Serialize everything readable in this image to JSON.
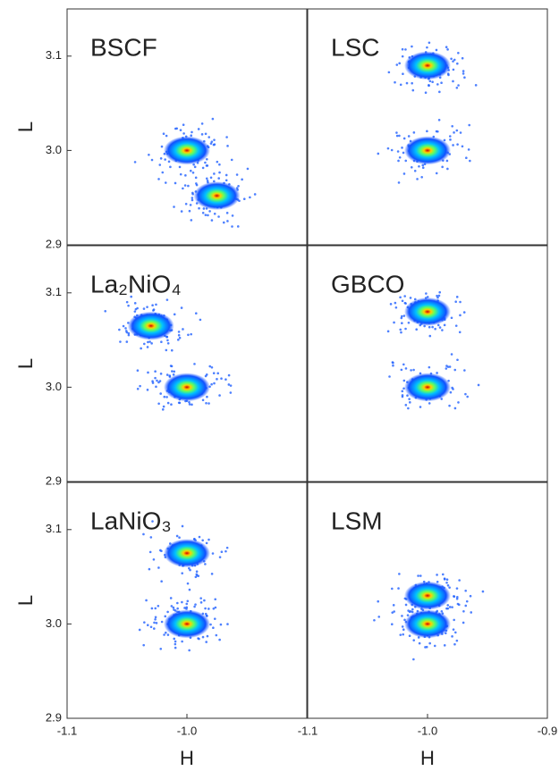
{
  "chart_data": [
    {
      "type": "scatter",
      "title": "BSCF",
      "x": [
        -1.0,
        -0.975
      ],
      "y": [
        3.0,
        2.952
      ],
      "xlim": [
        -1.1,
        -0.9
      ],
      "ylim": [
        2.9,
        3.15
      ],
      "yticks": [
        2.9,
        {
          "value": 3,
          "label": "3.0"
        },
        3.1
      ],
      "ylabel": "L"
    },
    {
      "type": "scatter",
      "title": "LSC",
      "x": [
        -1.0,
        -1.0
      ],
      "y": [
        3.0,
        3.09
      ],
      "xlim": [
        -1.1,
        -0.9
      ],
      "ylim": [
        2.9,
        3.15
      ]
    },
    {
      "type": "scatter",
      "title": "La₂NiO₄",
      "x": [
        -1.03,
        -1.0
      ],
      "y": [
        3.065,
        3.0
      ],
      "xlim": [
        -1.1,
        -0.9
      ],
      "ylim": [
        2.9,
        3.15
      ],
      "yticks": [
        2.9,
        {
          "value": 3,
          "label": "3.0"
        },
        3.1
      ],
      "ylabel": "L"
    },
    {
      "type": "scatter",
      "title": "GBCO",
      "x": [
        -1.0,
        -1.0
      ],
      "y": [
        3.08,
        3.0
      ],
      "xlim": [
        -1.1,
        -0.9
      ],
      "ylim": [
        2.9,
        3.15
      ]
    },
    {
      "type": "scatter",
      "title": "LaNiO₃",
      "x": [
        -1.0,
        -1.0
      ],
      "y": [
        3.075,
        3.0
      ],
      "xlim": [
        -1.1,
        -0.9
      ],
      "ylim": [
        2.9,
        3.15
      ],
      "yticks": [
        2.9,
        {
          "value": 3,
          "label": "3.0"
        },
        3.1
      ],
      "xticks": [
        -1.1,
        {
          "value": -1,
          "label": "-1.0"
        }
      ],
      "ylabel": "L",
      "xlabel": "H"
    },
    {
      "type": "scatter",
      "title": "LSM",
      "x": [
        -1.0,
        -1.0
      ],
      "y": [
        3.03,
        3.0
      ],
      "xlim": [
        -1.1,
        -0.9
      ],
      "ylim": [
        2.9,
        3.15
      ],
      "xticks": [
        -1.1,
        {
          "value": -1,
          "label": "-1.0"
        },
        -0.9
      ],
      "xlabel": "H"
    }
  ]
}
